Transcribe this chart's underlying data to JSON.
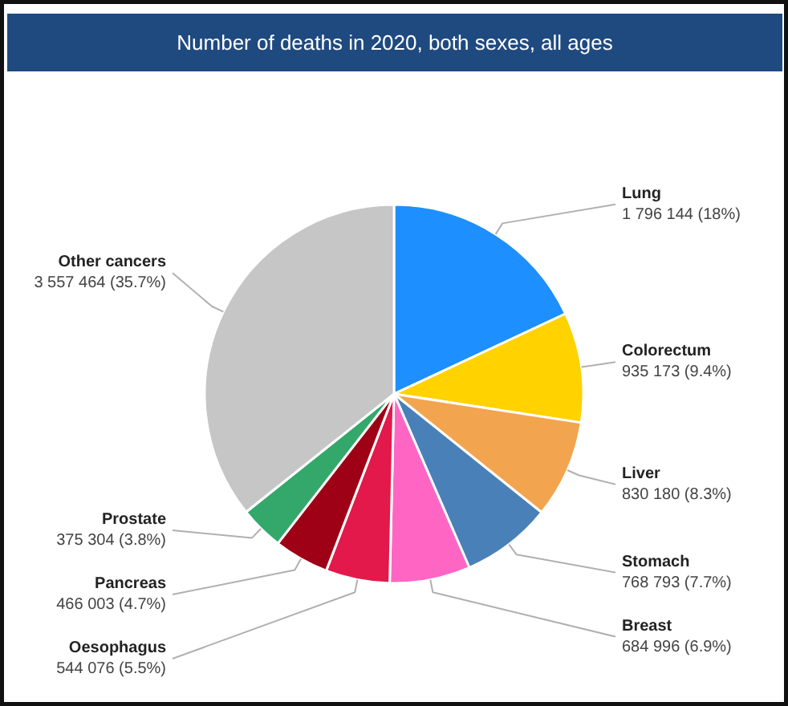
{
  "chart_data": {
    "type": "pie",
    "title": "Number of deaths in 2020, both sexes, all ages",
    "categories": [
      "Lung",
      "Colorectum",
      "Liver",
      "Stomach",
      "Breast",
      "Oesophagus",
      "Pancreas",
      "Prostate",
      "Other cancers"
    ],
    "values": [
      1796144,
      935173,
      830180,
      768793,
      684996,
      544076,
      466003,
      375304,
      3557464
    ],
    "colors": [
      "#1e8fff",
      "#ffd200",
      "#f2a54e",
      "#4a80b8",
      "#ff66c4",
      "#e3194b",
      "#9e0016",
      "#34a86a",
      "#c6c6c6"
    ],
    "value_labels": [
      "1 796 144 (18%)",
      "935 173 (9.4%)",
      "830 180 (8.3%)",
      "768 793 (7.7%)",
      "684 996 (6.9%)",
      "544 076 (5.5%)",
      "466 003 (4.7%)",
      "375 304 (3.8%)",
      "3 557 464 (35.7%)"
    ]
  }
}
